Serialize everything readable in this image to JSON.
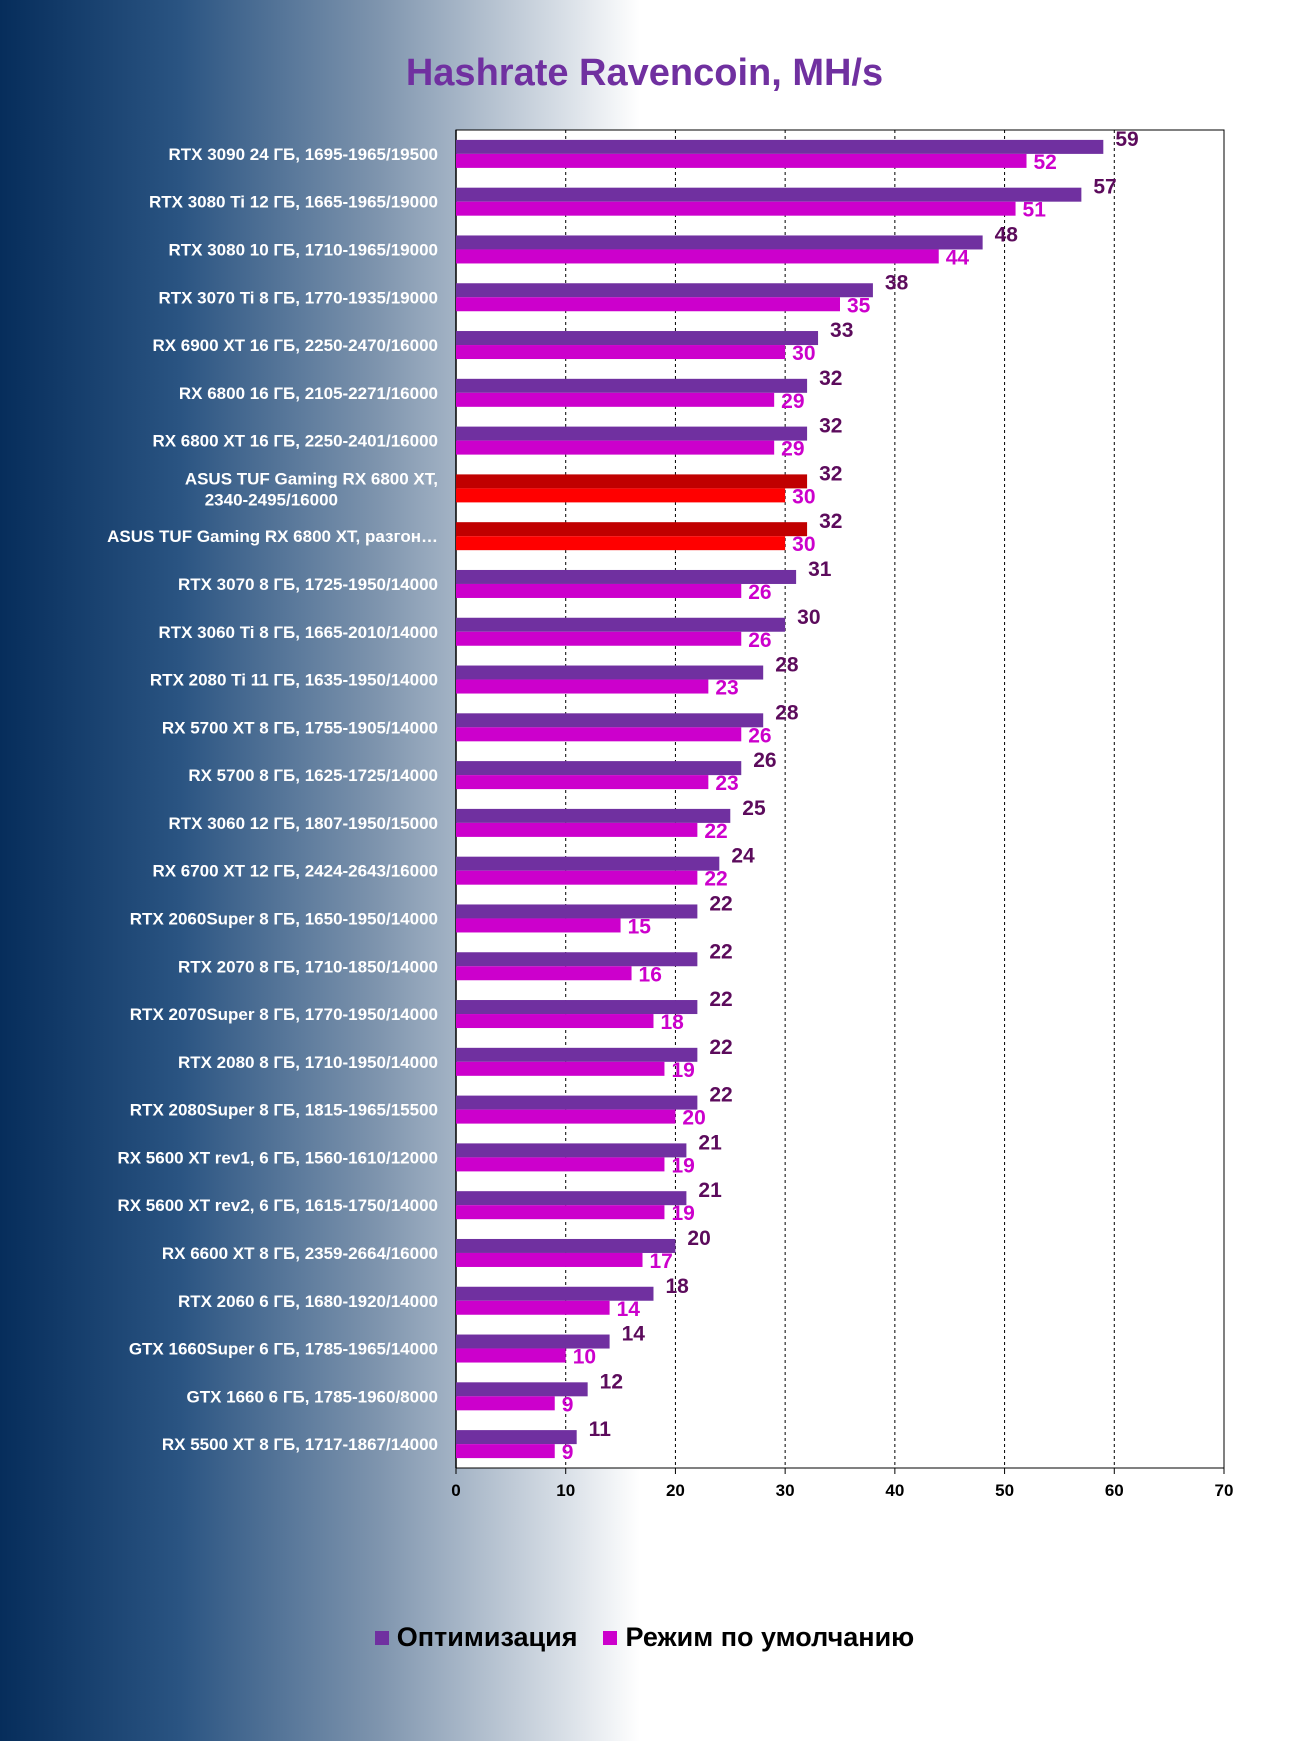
{
  "chart_data": {
    "type": "bar",
    "orientation": "horizontal",
    "title": "Hashrate Ravencoin, MH/s",
    "xlim": [
      0,
      70
    ],
    "xticks": [
      0,
      10,
      20,
      30,
      40,
      50,
      60,
      70
    ],
    "grid": "vertical dashed",
    "legend_position": "bottom",
    "categories": [
      "RTX 3090 24 ГБ, 1695-1965/19500",
      "RTX 3080 Ti 12 ГБ, 1665-1965/19000",
      "RTX 3080 10 ГБ, 1710-1965/19000",
      "RTX 3070 Ti 8 ГБ, 1770-1935/19000",
      "RX 6900 XT 16 ГБ, 2250-2470/16000",
      "RX 6800 16 ГБ, 2105-2271/16000",
      "RX 6800 XT 16 ГБ, 2250-2401/16000",
      "ASUS TUF Gaming RX 6800 XT, 2340-2495/16000",
      "ASUS TUF Gaming RX 6800 XT, разгон…",
      "RTX 3070 8 ГБ, 1725-1950/14000",
      "RTX 3060 Ti 8 ГБ, 1665-2010/14000",
      "RTX 2080 Ti 11 ГБ, 1635-1950/14000",
      "RX 5700 XT 8 ГБ, 1755-1905/14000",
      "RX 5700 8 ГБ, 1625-1725/14000",
      "RTX 3060 12 ГБ, 1807-1950/15000",
      "RX 6700 XT 12 ГБ, 2424-2643/16000",
      "RTX 2060Super 8 ГБ, 1650-1950/14000",
      "RTX 2070 8 ГБ, 1710-1850/14000",
      "RTX 2070Super 8 ГБ, 1770-1950/14000",
      "RTX 2080 8 ГБ, 1710-1950/14000",
      "RTX 2080Super 8 ГБ, 1815-1965/15500",
      "RX 5600 XT rev1, 6 ГБ, 1560-1610/12000",
      "RX 5600 XT rev2, 6 ГБ, 1615-1750/14000",
      "RX 6600 XT 8 ГБ, 2359-2664/16000",
      "RTX 2060 6 ГБ, 1680-1920/14000",
      "GTX 1660Super 6 ГБ, 1785-1965/14000",
      "GTX 1660 6 ГБ, 1785-1960/8000",
      "RX 5500 XT 8 ГБ, 1717-1867/14000"
    ],
    "highlighted_categories": [
      7,
      8
    ],
    "series": [
      {
        "name": "Оптимизация",
        "color": "#7030a0",
        "label_color": "#5c0b5c",
        "highlight_color": "#c00000",
        "values": [
          59,
          57,
          48,
          38,
          33,
          32,
          32,
          32,
          32,
          31,
          30,
          28,
          28,
          26,
          25,
          24,
          22,
          22,
          22,
          22,
          22,
          21,
          21,
          20,
          18,
          14,
          12,
          11
        ]
      },
      {
        "name": "Режим по умолчанию",
        "color": "#cc00cc",
        "label_color": "#cc00cc",
        "highlight_color": "#ff0000",
        "values": [
          52,
          51,
          44,
          35,
          30,
          29,
          29,
          30,
          30,
          26,
          26,
          23,
          26,
          23,
          22,
          22,
          15,
          16,
          18,
          19,
          20,
          19,
          19,
          17,
          14,
          10,
          9,
          9
        ]
      }
    ]
  }
}
